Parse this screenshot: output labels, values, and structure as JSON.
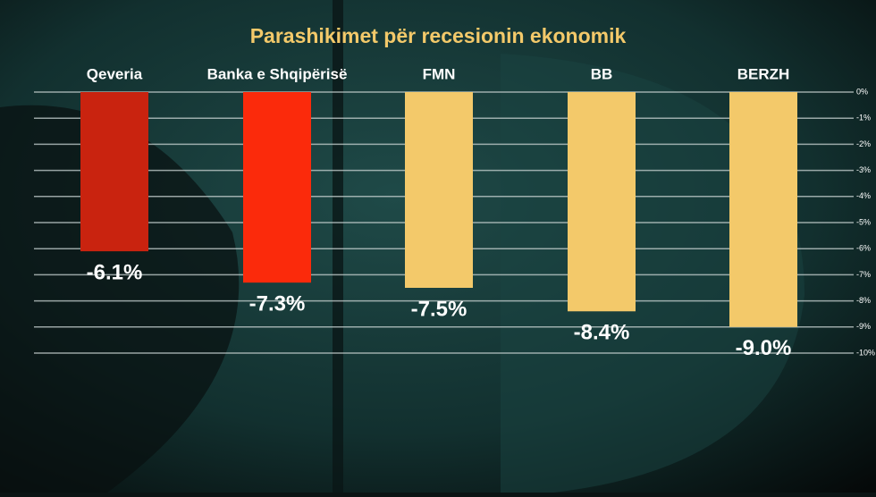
{
  "chart_data": {
    "type": "bar",
    "title": "Parashikimet për recesionin ekonomik",
    "categories": [
      "Qeveria",
      "Banka e Shqipërisë",
      "FMN",
      "BB",
      "BERZH"
    ],
    "values": [
      -6.1,
      -7.3,
      -7.5,
      -8.4,
      -9.0
    ],
    "value_labels": [
      "-6.1%",
      "-7.3%",
      "-7.5%",
      "-8.4%",
      "-9.0%"
    ],
    "colors": [
      "#c9230f",
      "#fb2a0b",
      "#f3c96a",
      "#f3c96a",
      "#f3c96a"
    ],
    "ylim": [
      -10,
      0
    ],
    "yticks": [
      {
        "value": 0,
        "label": "0%"
      },
      {
        "value": -1,
        "label": "-1%"
      },
      {
        "value": -2,
        "label": "-2%"
      },
      {
        "value": -3,
        "label": "-3%"
      },
      {
        "value": -4,
        "label": "-4%"
      },
      {
        "value": -5,
        "label": "-5%"
      },
      {
        "value": -6,
        "label": "-6%"
      },
      {
        "value": -7,
        "label": "-7%"
      },
      {
        "value": -8,
        "label": "-8%"
      },
      {
        "value": -9,
        "label": "-9%"
      },
      {
        "value": -10,
        "label": "-10%"
      }
    ],
    "grid": true
  }
}
